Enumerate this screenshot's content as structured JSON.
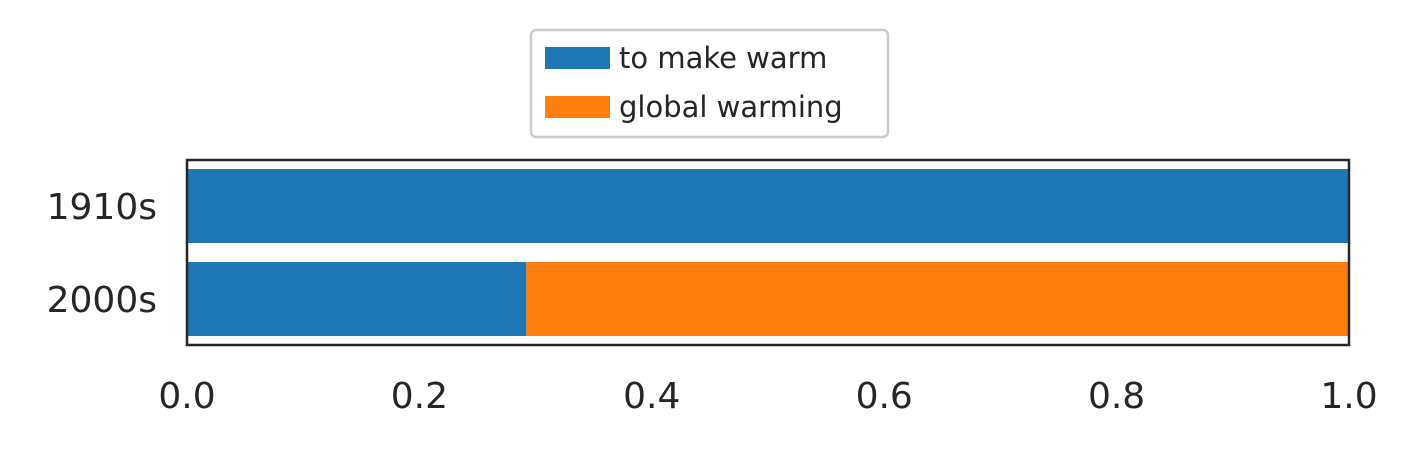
{
  "chart_data": {
    "type": "bar",
    "orientation": "horizontal",
    "stacked": true,
    "categories": [
      "1910s",
      "2000s"
    ],
    "series": [
      {
        "name": "to make warm",
        "values": [
          1.0,
          0.292
        ],
        "color": "#1f77b4"
      },
      {
        "name": "global warming",
        "values": [
          0.0,
          0.708
        ],
        "color": "#ff7f0e"
      }
    ],
    "x_ticks": [
      "0.0",
      "0.2",
      "0.4",
      "0.6",
      "0.8",
      "1.0"
    ],
    "xlim": [
      0,
      1
    ],
    "title": "",
    "xlabel": "",
    "ylabel": "",
    "grid": false,
    "legend_position": "top-center"
  }
}
